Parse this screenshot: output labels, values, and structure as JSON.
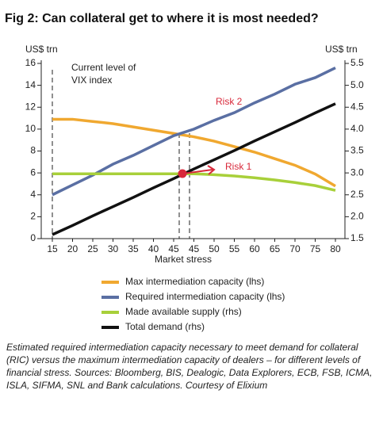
{
  "chart_data": {
    "type": "line",
    "title": "Fig 2: Can collateral get to where it is most needed?",
    "y_label": "US$ trn",
    "y2_label": "US$ trn",
    "x_label": "Market stress",
    "annotations": [
      "Current level of\nVIX index",
      "Risk 1",
      "Risk 2"
    ],
    "caption": "Estimated required intermediation capacity necessary to meet demand for collateral (RIC) versus the maximum intermediation capacity of dealers – for different levels of financial stress. Sources: Bloomberg, BIS, Dealogic, Data Explorers, ECB, FSB, ICMA, ISLA, SIFMA, SNL and Bank calculations. Courtesy of Elixium",
    "categories": [
      "15",
      "20",
      "25",
      "30",
      "35",
      "40",
      "45",
      "45",
      "50",
      "55",
      "60",
      "65",
      "70",
      "75",
      "80"
    ],
    "ylim": [
      0,
      16
    ],
    "yticks": [
      0,
      2,
      4,
      6,
      8,
      10,
      12,
      14,
      16
    ],
    "y2lim": [
      1.5,
      5.5
    ],
    "y2ticks": [
      1.5,
      {
        "value": 2,
        "label": "2.0"
      },
      2.5,
      {
        "value": 3,
        "label": "3.0"
      },
      3.5,
      {
        "value": 4,
        "label": "4.0"
      },
      4.5,
      {
        "value": 5,
        "label": "5.0"
      },
      5.5
    ],
    "series": [
      {
        "name": "Max intermediation capacity (lhs)",
        "color": "#f0a830",
        "values": [
          10.9,
          10.9,
          10.7,
          10.5,
          10.2,
          9.9,
          9.6,
          9.3,
          8.9,
          8.4,
          7.9,
          7.3,
          6.7,
          5.9,
          4.8
        ]
      },
      {
        "name": "Required intermediation capacity (lhs)",
        "color": "#5a6fa3",
        "values": [
          4.0,
          4.9,
          5.8,
          6.8,
          7.6,
          8.5,
          9.4,
          10.0,
          10.8,
          11.5,
          12.4,
          13.2,
          14.1,
          14.7,
          15.6
        ]
      },
      {
        "name": "Made available supply (rhs)",
        "color": "#a8d03a",
        "axis": "y2",
        "values": [
          2.98,
          2.98,
          2.98,
          2.98,
          2.98,
          2.98,
          2.98,
          2.98,
          2.96,
          2.93,
          2.89,
          2.84,
          2.78,
          2.71,
          2.6
        ]
      },
      {
        "name": "Total demand (rhs)",
        "color": "#111111",
        "axis": "y2",
        "values": [
          1.59,
          1.8,
          2.02,
          2.23,
          2.44,
          2.66,
          2.87,
          3.09,
          3.3,
          3.51,
          3.73,
          3.94,
          4.15,
          4.37,
          4.58
        ]
      }
    ]
  }
}
